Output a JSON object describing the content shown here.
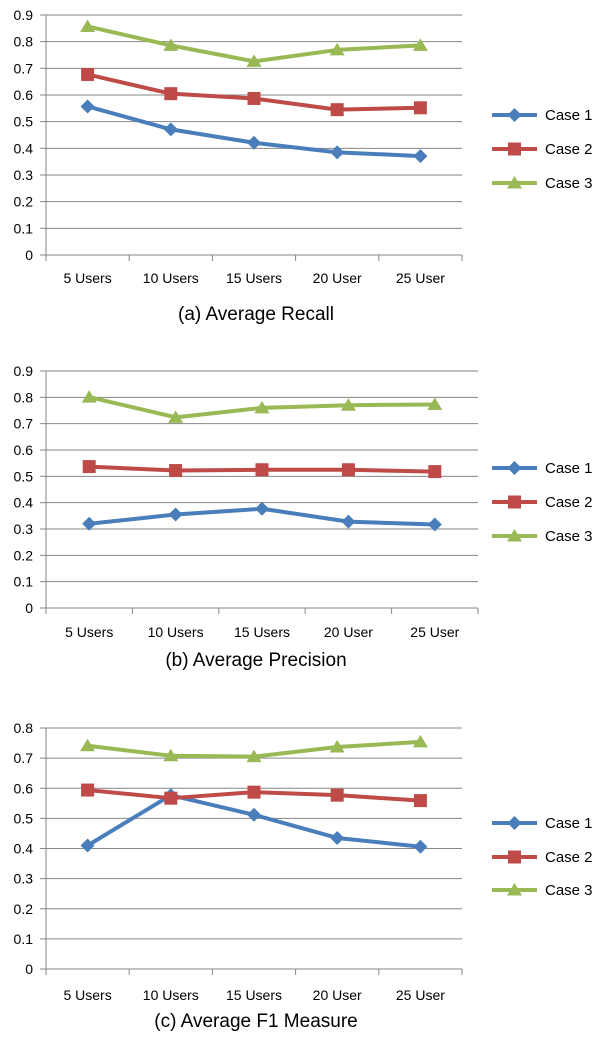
{
  "colors": {
    "Case 1": "#4a7ebb",
    "Case 2": "#be4b48",
    "Case 3": "#98b954"
  },
  "chart_data": [
    {
      "type": "line",
      "caption": "(a) Average Recall",
      "categories": [
        "5 Users",
        "10 Users",
        "15 Users",
        "20 User",
        "25 User"
      ],
      "ylim": [
        0,
        0.9
      ],
      "yticks": [
        "0",
        "0.1",
        "0.2",
        "0.3",
        "0.4",
        "0.5",
        "0.6",
        "0.7",
        "0.8",
        "0.9"
      ],
      "grid": true,
      "legend": "right",
      "series": [
        {
          "name": "Case 1",
          "marker": "diamond",
          "values": [
            0.557,
            0.471,
            0.421,
            0.385,
            0.371
          ]
        },
        {
          "name": "Case 2",
          "marker": "square",
          "values": [
            0.677,
            0.605,
            0.587,
            0.545,
            0.552
          ]
        },
        {
          "name": "Case 3",
          "marker": "triangle",
          "values": [
            0.857,
            0.786,
            0.726,
            0.769,
            0.786
          ]
        }
      ]
    },
    {
      "type": "line",
      "caption": "(b) Average Precision",
      "categories": [
        "5 Users",
        "10 Users",
        "15 Users",
        "20 User",
        "25 User"
      ],
      "ylim": [
        0,
        0.9
      ],
      "yticks": [
        "0",
        "0.1",
        "0.2",
        "0.3",
        "0.4",
        "0.5",
        "0.6",
        "0.7",
        "0.8",
        "0.9"
      ],
      "grid": true,
      "legend": "right",
      "series": [
        {
          "name": "Case 1",
          "marker": "diamond",
          "values": [
            0.32,
            0.355,
            0.377,
            0.328,
            0.317
          ]
        },
        {
          "name": "Case 2",
          "marker": "square",
          "values": [
            0.537,
            0.522,
            0.525,
            0.525,
            0.518
          ]
        },
        {
          "name": "Case 3",
          "marker": "triangle",
          "values": [
            0.801,
            0.724,
            0.76,
            0.77,
            0.773
          ]
        }
      ]
    },
    {
      "type": "line",
      "caption": "(c) Average F1 Measure",
      "categories": [
        "5 Users",
        "10 Users",
        "15 Users",
        "20 User",
        "25 User"
      ],
      "ylim": [
        0,
        0.8
      ],
      "yticks": [
        "0",
        "0.1",
        "0.2",
        "0.3",
        "0.4",
        "0.5",
        "0.6",
        "0.7",
        "0.8"
      ],
      "grid": true,
      "legend": "right",
      "series": [
        {
          "name": "Case 1",
          "marker": "diamond",
          "values": [
            0.41,
            0.577,
            0.512,
            0.435,
            0.406
          ]
        },
        {
          "name": "Case 2",
          "marker": "square",
          "values": [
            0.594,
            0.567,
            0.587,
            0.577,
            0.559
          ]
        },
        {
          "name": "Case 3",
          "marker": "triangle",
          "values": [
            0.741,
            0.708,
            0.705,
            0.737,
            0.754
          ]
        }
      ]
    }
  ]
}
